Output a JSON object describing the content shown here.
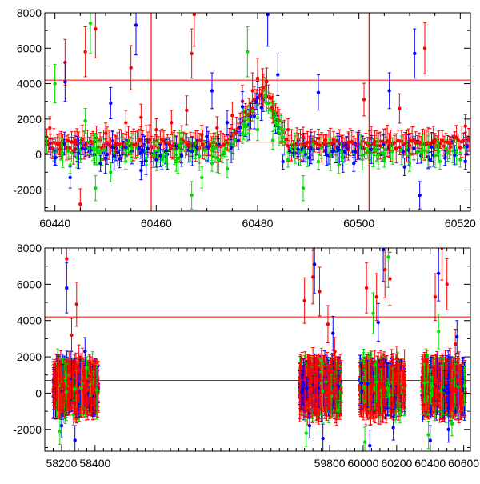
{
  "chart_data": [
    {
      "type": "scatter",
      "panel": "top",
      "xlim": [
        60438,
        60522
      ],
      "ylim": [
        -3200,
        8000
      ],
      "x_ticks": [
        60440,
        60460,
        60480,
        60500,
        60520
      ],
      "y_ticks": [
        -2000,
        0,
        2000,
        4000,
        6000,
        8000
      ],
      "hlines": [
        {
          "y": 4200,
          "color": "#ff0000"
        },
        {
          "y": 700,
          "color": "#ff0000"
        }
      ],
      "vlines": [
        {
          "x": 60459,
          "color": "#ff0000"
        },
        {
          "x": 60502,
          "color": "#ff0000"
        }
      ],
      "grid": false,
      "series": [
        {
          "color": "#ff0000",
          "points": [
            [
              60439,
              1500
            ],
            [
              60441,
              300
            ],
            [
              60442,
              5200
            ],
            [
              60444,
              800
            ],
            [
              60445,
              -2800
            ],
            [
              60446,
              5800
            ],
            [
              60448,
              7100
            ],
            [
              60450,
              1200
            ],
            [
              60452,
              600
            ],
            [
              60454,
              1800
            ],
            [
              60455,
              4900
            ],
            [
              60457,
              2100
            ],
            [
              60460,
              1400
            ],
            [
              60463,
              1800
            ],
            [
              60466,
              2500
            ],
            [
              60467,
              5700
            ],
            [
              60467.5,
              7900
            ],
            [
              60469,
              1100
            ],
            [
              60472,
              1500
            ],
            [
              60475,
              2200
            ],
            [
              60477,
              3000
            ],
            [
              60479,
              3600
            ],
            [
              60480,
              4300
            ],
            [
              60481,
              3800
            ],
            [
              60483,
              2600
            ],
            [
              60486,
              1400
            ],
            [
              60489,
              1000
            ],
            [
              60492,
              900
            ],
            [
              60495,
              800
            ],
            [
              60498,
              700
            ],
            [
              60501,
              3100
            ],
            [
              60503,
              600
            ],
            [
              60506,
              700
            ],
            [
              60508,
              2600
            ],
            [
              60510,
              500
            ],
            [
              60513,
              6000
            ],
            [
              60515,
              700
            ],
            [
              60518,
              400
            ],
            [
              60521,
              1600
            ]
          ]
        },
        {
          "color": "#0000ff",
          "points": [
            [
              60440,
              -200
            ],
            [
              60442,
              4100
            ],
            [
              60443,
              -1300
            ],
            [
              60446,
              300
            ],
            [
              60449,
              -500
            ],
            [
              60451,
              2900
            ],
            [
              60454,
              400
            ],
            [
              60456,
              7300
            ],
            [
              60457,
              -900
            ],
            [
              60460,
              -300
            ],
            [
              60462,
              200
            ],
            [
              60465,
              -100
            ],
            [
              60468,
              400
            ],
            [
              60470,
              1000
            ],
            [
              60471,
              3600
            ],
            [
              60474,
              1800
            ],
            [
              60477,
              2700
            ],
            [
              60480,
              3200
            ],
            [
              60482,
              7900
            ],
            [
              60484,
              4500
            ],
            [
              60485,
              -400
            ],
            [
              60488,
              300
            ],
            [
              60492,
              3500
            ],
            [
              60495,
              200
            ],
            [
              60499,
              -500
            ],
            [
              60506,
              3600
            ],
            [
              60509,
              -700
            ],
            [
              60511,
              5700
            ],
            [
              60512,
              -2300
            ],
            [
              60514,
              -300
            ],
            [
              60517,
              -200
            ],
            [
              60521,
              -400
            ]
          ]
        },
        {
          "color": "#00dd00",
          "points": [
            [
              60440,
              4000
            ],
            [
              60443,
              -600
            ],
            [
              60446,
              1900
            ],
            [
              60447,
              7400
            ],
            [
              60448,
              -1900
            ],
            [
              60451,
              -1000
            ],
            [
              60454,
              -400
            ],
            [
              60458,
              -200
            ],
            [
              60462,
              -300
            ],
            [
              60465,
              700
            ],
            [
              60467,
              -2300
            ],
            [
              60469,
              -1300
            ],
            [
              60471,
              -500
            ],
            [
              60474,
              -800
            ],
            [
              60477,
              1200
            ],
            [
              60478,
              5800
            ],
            [
              60480,
              1400
            ],
            [
              60483,
              800
            ],
            [
              60485,
              1300
            ],
            [
              60486,
              -300
            ],
            [
              60489,
              -1900
            ],
            [
              60492,
              -400
            ],
            [
              60496,
              -600
            ],
            [
              60505,
              -300
            ],
            [
              60510,
              -500
            ],
            [
              60516,
              -400
            ],
            [
              60520,
              -300
            ]
          ]
        }
      ]
    },
    {
      "type": "scatter",
      "panel": "bottom",
      "xlim": [
        58100,
        60640
      ],
      "ylim": [
        -3200,
        8000
      ],
      "x_ticks": [
        58200,
        58400,
        59800,
        60000,
        60200,
        60400,
        60600
      ],
      "y_ticks": [
        -2000,
        0,
        2000,
        4000,
        6000,
        8000
      ],
      "hlines": [
        {
          "y": 4200,
          "color": "#ff0000"
        },
        {
          "y": 700,
          "color": "#ff0000"
        }
      ],
      "grid": false,
      "clusters": [
        [
          58150,
          58420
        ],
        [
          59620,
          59870
        ],
        [
          59980,
          60250
        ],
        [
          60350,
          60610
        ]
      ],
      "series": [
        {
          "color": "#ff0000",
          "points": [
            [
              58180,
              1500
            ],
            [
              58230,
              7400
            ],
            [
              58260,
              3200
            ],
            [
              58290,
              4900
            ],
            [
              58330,
              1200
            ],
            [
              58380,
              900
            ],
            [
              59650,
              5100
            ],
            [
              59700,
              6400
            ],
            [
              59740,
              5600
            ],
            [
              59790,
              3800
            ],
            [
              59830,
              2300
            ],
            [
              60020,
              5800
            ],
            [
              60080,
              5300
            ],
            [
              60130,
              6800
            ],
            [
              60160,
              6300
            ],
            [
              60200,
              1900
            ],
            [
              60380,
              1700
            ],
            [
              60430,
              5300
            ],
            [
              60470,
              8000
            ],
            [
              60500,
              6000
            ],
            [
              60550,
              2700
            ]
          ]
        },
        {
          "color": "#0000ff",
          "points": [
            [
              58200,
              -1800
            ],
            [
              58230,
              5800
            ],
            [
              58280,
              -2600
            ],
            [
              58340,
              2300
            ],
            [
              59680,
              -1800
            ],
            [
              59710,
              7100
            ],
            [
              59760,
              -2500
            ],
            [
              59820,
              3300
            ],
            [
              60040,
              -2900
            ],
            [
              60090,
              3900
            ],
            [
              60120,
              7900
            ],
            [
              60180,
              -1900
            ],
            [
              60400,
              -2600
            ],
            [
              60450,
              6600
            ],
            [
              60510,
              -2000
            ],
            [
              60560,
              3100
            ]
          ]
        },
        {
          "color": "#00dd00",
          "points": [
            [
              58190,
              -2100
            ],
            [
              58270,
              -1200
            ],
            [
              58350,
              1400
            ],
            [
              59660,
              -2200
            ],
            [
              59750,
              1800
            ],
            [
              59850,
              -900
            ],
            [
              60010,
              -2700
            ],
            [
              60060,
              4400
            ],
            [
              60150,
              7500
            ],
            [
              60220,
              -1100
            ],
            [
              60390,
              -2300
            ],
            [
              60450,
              3400
            ],
            [
              60530,
              -1700
            ]
          ]
        }
      ]
    }
  ]
}
